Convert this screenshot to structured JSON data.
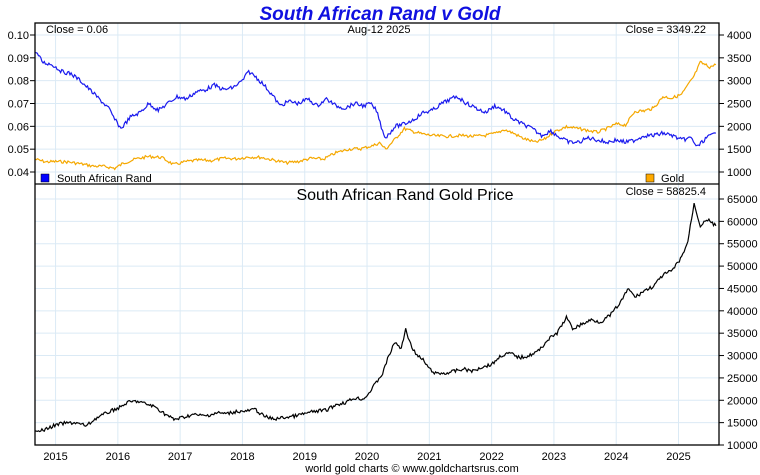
{
  "chart_data": [
    {
      "type": "line",
      "title": "South African Rand v Gold",
      "date_label": "Aug-12  2025",
      "left_close_label": "Close = 0.06",
      "right_close_label": "Close = 3349.22",
      "x_tick_labels": [
        "2015",
        "2016",
        "2017",
        "2018",
        "2019",
        "2020",
        "2021",
        "2022",
        "2023",
        "2024",
        "2025"
      ],
      "xlim": [
        2014.67,
        2025.65
      ],
      "left_axis": {
        "ylim": [
          0.038,
          0.102
        ],
        "ticks": [
          "0.10",
          "0.09",
          "0.08",
          "0.07",
          "0.06",
          "0.05",
          "0.04"
        ],
        "tick_values": [
          0.1,
          0.09,
          0.08,
          0.07,
          0.06,
          0.05,
          0.04
        ]
      },
      "right_axis": {
        "ylim": [
          860,
          4140
        ],
        "ticks": [
          "4000",
          "3500",
          "3000",
          "2500",
          "2000",
          "1500",
          "1000"
        ],
        "tick_values": [
          4000,
          3500,
          3000,
          2500,
          2000,
          1500,
          1000
        ]
      },
      "legend": [
        {
          "name": "South African Rand",
          "color": "#0000ff",
          "placement": "bottom-left"
        },
        {
          "name": "Gold",
          "color": "#ffaa00",
          "placement": "bottom-right"
        }
      ],
      "series": [
        {
          "name": "South African Rand",
          "axis": "left",
          "color": "#1a1aee",
          "x": [
            2014.67,
            2014.8,
            2014.95,
            2015.1,
            2015.25,
            2015.4,
            2015.55,
            2015.7,
            2015.85,
            2015.95,
            2016.05,
            2016.2,
            2016.35,
            2016.5,
            2016.65,
            2016.8,
            2016.95,
            2017.1,
            2017.25,
            2017.4,
            2017.55,
            2017.7,
            2017.85,
            2018.0,
            2018.1,
            2018.2,
            2018.35,
            2018.5,
            2018.6,
            2018.75,
            2018.9,
            2019.05,
            2019.2,
            2019.35,
            2019.5,
            2019.65,
            2019.8,
            2019.95,
            2020.05,
            2020.15,
            2020.25,
            2020.3,
            2020.45,
            2020.6,
            2020.75,
            2020.9,
            2021.05,
            2021.2,
            2021.35,
            2021.45,
            2021.6,
            2021.75,
            2021.9,
            2022.05,
            2022.2,
            2022.35,
            2022.5,
            2022.65,
            2022.8,
            2022.95,
            2023.1,
            2023.25,
            2023.4,
            2023.55,
            2023.7,
            2023.85,
            2024.0,
            2024.15,
            2024.3,
            2024.45,
            2024.6,
            2024.75,
            2024.9,
            2025.05,
            2025.2,
            2025.3,
            2025.45,
            2025.6
          ],
          "values": [
            0.093,
            0.088,
            0.087,
            0.084,
            0.083,
            0.08,
            0.076,
            0.072,
            0.068,
            0.063,
            0.059,
            0.064,
            0.066,
            0.07,
            0.067,
            0.07,
            0.073,
            0.072,
            0.075,
            0.076,
            0.078,
            0.076,
            0.077,
            0.08,
            0.084,
            0.082,
            0.078,
            0.073,
            0.069,
            0.071,
            0.07,
            0.072,
            0.069,
            0.072,
            0.069,
            0.068,
            0.07,
            0.069,
            0.07,
            0.067,
            0.058,
            0.055,
            0.06,
            0.061,
            0.063,
            0.066,
            0.067,
            0.07,
            0.072,
            0.073,
            0.07,
            0.068,
            0.066,
            0.069,
            0.067,
            0.063,
            0.061,
            0.059,
            0.056,
            0.058,
            0.055,
            0.053,
            0.053,
            0.055,
            0.054,
            0.053,
            0.054,
            0.053,
            0.054,
            0.056,
            0.056,
            0.057,
            0.056,
            0.054,
            0.055,
            0.051,
            0.055,
            0.057
          ]
        },
        {
          "name": "Gold",
          "axis": "right",
          "color": "#f5a800",
          "x": [
            2014.67,
            2014.85,
            2015.0,
            2015.2,
            2015.4,
            2015.6,
            2015.8,
            2015.95,
            2016.1,
            2016.3,
            2016.5,
            2016.7,
            2016.9,
            2017.1,
            2017.3,
            2017.5,
            2017.7,
            2017.9,
            2018.1,
            2018.3,
            2018.5,
            2018.7,
            2018.9,
            2019.1,
            2019.3,
            2019.5,
            2019.7,
            2019.9,
            2020.1,
            2020.2,
            2020.3,
            2020.45,
            2020.6,
            2020.75,
            2020.9,
            2021.1,
            2021.3,
            2021.5,
            2021.7,
            2021.9,
            2022.1,
            2022.2,
            2022.35,
            2022.5,
            2022.7,
            2022.85,
            2023.0,
            2023.2,
            2023.35,
            2023.5,
            2023.7,
            2023.85,
            2024.0,
            2024.15,
            2024.3,
            2024.45,
            2024.6,
            2024.75,
            2024.9,
            2025.05,
            2025.15,
            2025.25,
            2025.35,
            2025.5,
            2025.6
          ],
          "values": [
            1280,
            1220,
            1230,
            1220,
            1180,
            1130,
            1120,
            1080,
            1200,
            1290,
            1340,
            1320,
            1160,
            1230,
            1260,
            1250,
            1300,
            1290,
            1330,
            1320,
            1260,
            1200,
            1230,
            1300,
            1280,
            1420,
            1500,
            1510,
            1580,
            1640,
            1500,
            1720,
            1950,
            1880,
            1830,
            1790,
            1780,
            1800,
            1780,
            1800,
            1860,
            1930,
            1850,
            1740,
            1650,
            1720,
            1880,
            1990,
            1960,
            1920,
            1870,
            1950,
            2050,
            2030,
            2330,
            2340,
            2400,
            2650,
            2620,
            2700,
            2900,
            3100,
            3400,
            3300,
            3349
          ]
        }
      ]
    },
    {
      "type": "line",
      "title": "South African Rand Gold Price",
      "close_label": "Close = 58825.4",
      "xlim": [
        2014.67,
        2025.65
      ],
      "ylim": [
        10000,
        66500
      ],
      "y_ticks": [
        "65000",
        "60000",
        "55000",
        "50000",
        "45000",
        "40000",
        "35000",
        "30000",
        "25000",
        "20000",
        "15000",
        "10000"
      ],
      "y_tick_values": [
        65000,
        60000,
        55000,
        50000,
        45000,
        40000,
        35000,
        30000,
        25000,
        20000,
        15000,
        10000
      ],
      "series": [
        {
          "name": "South African Rand Gold Price",
          "color": "#000000",
          "x": [
            2014.67,
            2014.8,
            2014.95,
            2015.1,
            2015.3,
            2015.5,
            2015.65,
            2015.8,
            2015.95,
            2016.05,
            2016.15,
            2016.3,
            2016.45,
            2016.6,
            2016.75,
            2016.9,
            2017.05,
            2017.2,
            2017.4,
            2017.6,
            2017.75,
            2017.9,
            2018.05,
            2018.2,
            2018.35,
            2018.5,
            2018.7,
            2018.85,
            2019.0,
            2019.15,
            2019.35,
            2019.5,
            2019.65,
            2019.8,
            2019.95,
            2020.05,
            2020.15,
            2020.25,
            2020.35,
            2020.45,
            2020.55,
            2020.62,
            2020.7,
            2020.8,
            2020.9,
            2021.0,
            2021.1,
            2021.25,
            2021.4,
            2021.55,
            2021.7,
            2021.85,
            2022.0,
            2022.15,
            2022.3,
            2022.45,
            2022.6,
            2022.75,
            2022.9,
            2023.05,
            2023.2,
            2023.3,
            2023.45,
            2023.6,
            2023.75,
            2023.9,
            2024.05,
            2024.2,
            2024.3,
            2024.45,
            2024.6,
            2024.75,
            2024.9,
            2025.05,
            2025.15,
            2025.25,
            2025.35,
            2025.45,
            2025.6
          ],
          "values": [
            13500,
            13200,
            14200,
            14800,
            15000,
            14300,
            16000,
            17000,
            18000,
            18500,
            19500,
            19800,
            19200,
            18500,
            17000,
            15700,
            16200,
            16800,
            16500,
            17200,
            17000,
            17500,
            17500,
            18000,
            16400,
            15800,
            16200,
            16500,
            17000,
            17500,
            17800,
            19000,
            19500,
            20500,
            20300,
            22000,
            24000,
            26000,
            30000,
            33000,
            31500,
            36000,
            32500,
            30000,
            29000,
            27000,
            26000,
            26000,
            26500,
            27000,
            26500,
            27500,
            28000,
            30000,
            30500,
            29500,
            30000,
            31000,
            33500,
            35000,
            38500,
            36000,
            37000,
            38000,
            37500,
            39000,
            41500,
            45000,
            43000,
            44500,
            45500,
            48000,
            49000,
            52000,
            55500,
            64000,
            59000,
            60500,
            59000
          ]
        }
      ]
    }
  ],
  "footer": "world gold charts © www.goldchartsrus.com"
}
